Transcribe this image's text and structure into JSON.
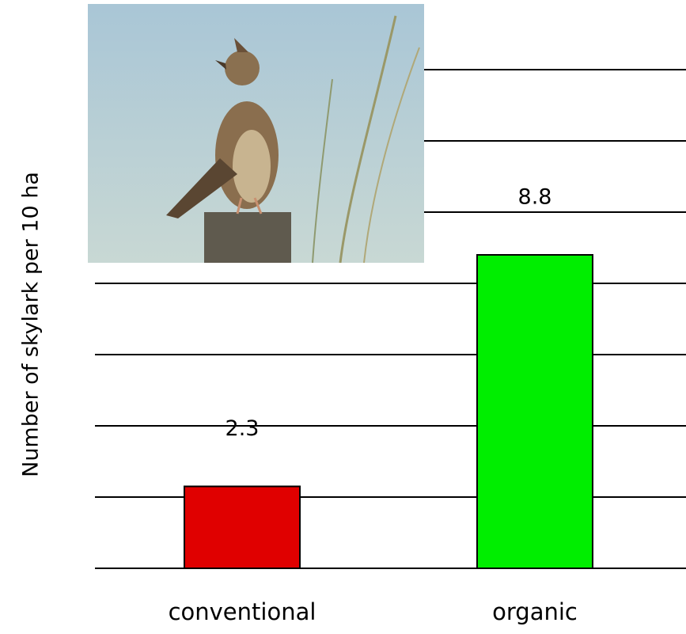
{
  "chart_data": {
    "type": "bar",
    "y_label": "Number of skylark per 10 ha",
    "categories": [
      "conventional",
      "organic"
    ],
    "values": [
      2.3,
      8.8
    ],
    "colors": [
      "#e00000",
      "#00ee00"
    ],
    "ylim": [
      0,
      14
    ],
    "yticks": [
      0,
      2,
      4,
      6,
      8,
      10,
      12,
      14
    ],
    "grid": true
  }
}
